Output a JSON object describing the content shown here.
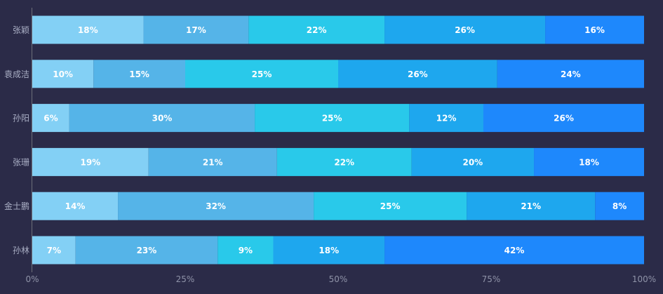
{
  "chart_data": {
    "type": "bar",
    "orientation": "horizontal",
    "stacked": true,
    "normalized": true,
    "categories": [
      "张颖",
      "袁成洁",
      "孙阳",
      "张珊",
      "金士鹏",
      "孙林"
    ],
    "series": [
      {
        "values": [
          18,
          10,
          6,
          19,
          14,
          7
        ],
        "color": "#83d0f5"
      },
      {
        "values": [
          17,
          15,
          30,
          21,
          32,
          23
        ],
        "color": "#55b4e8"
      },
      {
        "values": [
          22,
          25,
          25,
          22,
          25,
          9
        ],
        "color": "#29c9ea"
      },
      {
        "values": [
          26,
          26,
          12,
          20,
          21,
          18
        ],
        "color": "#1ea7ee"
      },
      {
        "values": [
          16,
          24,
          26,
          18,
          8,
          42
        ],
        "color": "#1e88fc"
      }
    ],
    "data_label_suffix": "%",
    "xlim": [
      0,
      100
    ],
    "x_ticks": [
      0,
      25,
      50,
      75,
      100
    ],
    "x_tick_labels": [
      "0%",
      "25%",
      "50%",
      "75%",
      "100%"
    ],
    "title": "",
    "xlabel": "",
    "ylabel": "",
    "legend": "none",
    "grid": false,
    "background": "#2b2b48",
    "axis_color": "#6e7079"
  }
}
